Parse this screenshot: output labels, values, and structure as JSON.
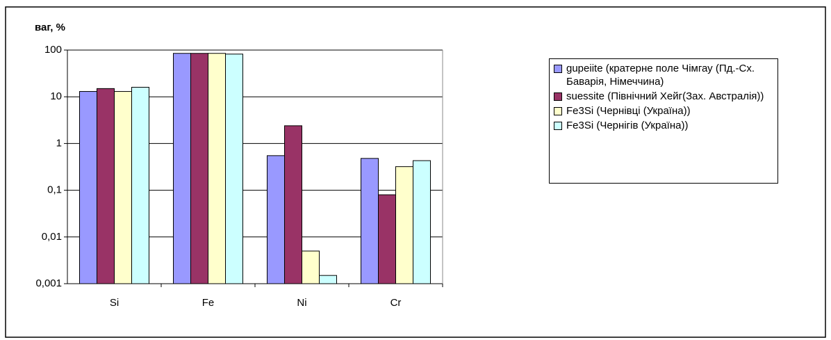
{
  "chart_data": {
    "type": "bar",
    "y_label": "ваг, %",
    "categories": [
      "Si",
      "Fe",
      "Ni",
      "Cr"
    ],
    "series": [
      {
        "name": "gupeiite (кратерне поле Чімгау (Пд.-Сх. Баварія, Німеччина)",
        "color": "#9999ff",
        "values": [
          13,
          85,
          0.55,
          0.48
        ]
      },
      {
        "name": "suessite (Північний Хейг(Зах. Австралія))",
        "color": "#993366",
        "values": [
          15,
          85,
          2.4,
          0.08
        ]
      },
      {
        "name": "Fe3Si (Чернівці (Україна))",
        "color": "#ffffcc",
        "values": [
          13,
          85,
          0.005,
          0.32
        ]
      },
      {
        "name": "Fe3Si (Чернігів (Україна))",
        "color": "#ccffff",
        "values": [
          16,
          82,
          0.0015,
          0.43
        ]
      }
    ],
    "ylim": [
      0.001,
      100
    ],
    "log_scale": true,
    "yticks": [
      100,
      10,
      1,
      {
        "value": 0.1,
        "label": "0,1"
      },
      {
        "value": 0.01,
        "label": "0,01"
      },
      {
        "value": 0.001,
        "label": "0,001"
      }
    ],
    "grid": true,
    "legend": "right"
  }
}
